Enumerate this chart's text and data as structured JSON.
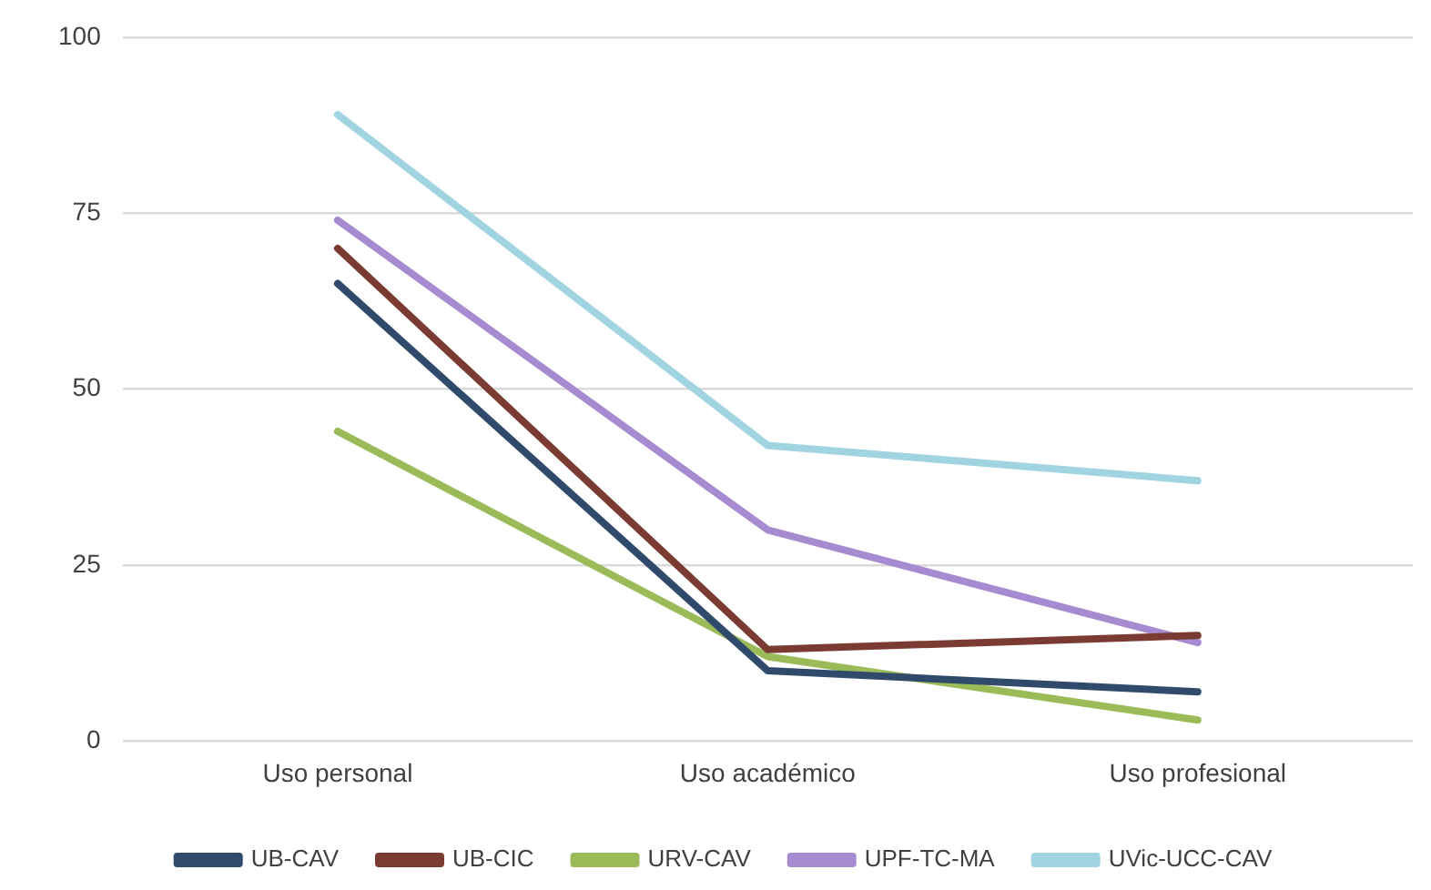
{
  "chart_data": {
    "type": "line",
    "categories": [
      "Uso personal",
      "Uso académico",
      "Uso profesional"
    ],
    "series": [
      {
        "name": "UB-CAV",
        "color": "#2f4a6a",
        "values": [
          65,
          10,
          7
        ]
      },
      {
        "name": "UB-CIC",
        "color": "#7a3b32",
        "values": [
          70,
          13,
          15
        ]
      },
      {
        "name": "URV-CAV",
        "color": "#9bbb59",
        "values": [
          44,
          12,
          3
        ]
      },
      {
        "name": "UPF-TC-MA",
        "color": "#a68bd1",
        "values": [
          74,
          30,
          14
        ]
      },
      {
        "name": "UVic-UCC-CAV",
        "color": "#9fd4e0",
        "values": [
          89,
          42,
          37
        ]
      }
    ],
    "ylim": [
      0,
      100
    ],
    "yticks": [
      0,
      25,
      50,
      75,
      100
    ],
    "grid": "y",
    "legend": "bottom",
    "marker": "none",
    "line_style": "solid"
  }
}
